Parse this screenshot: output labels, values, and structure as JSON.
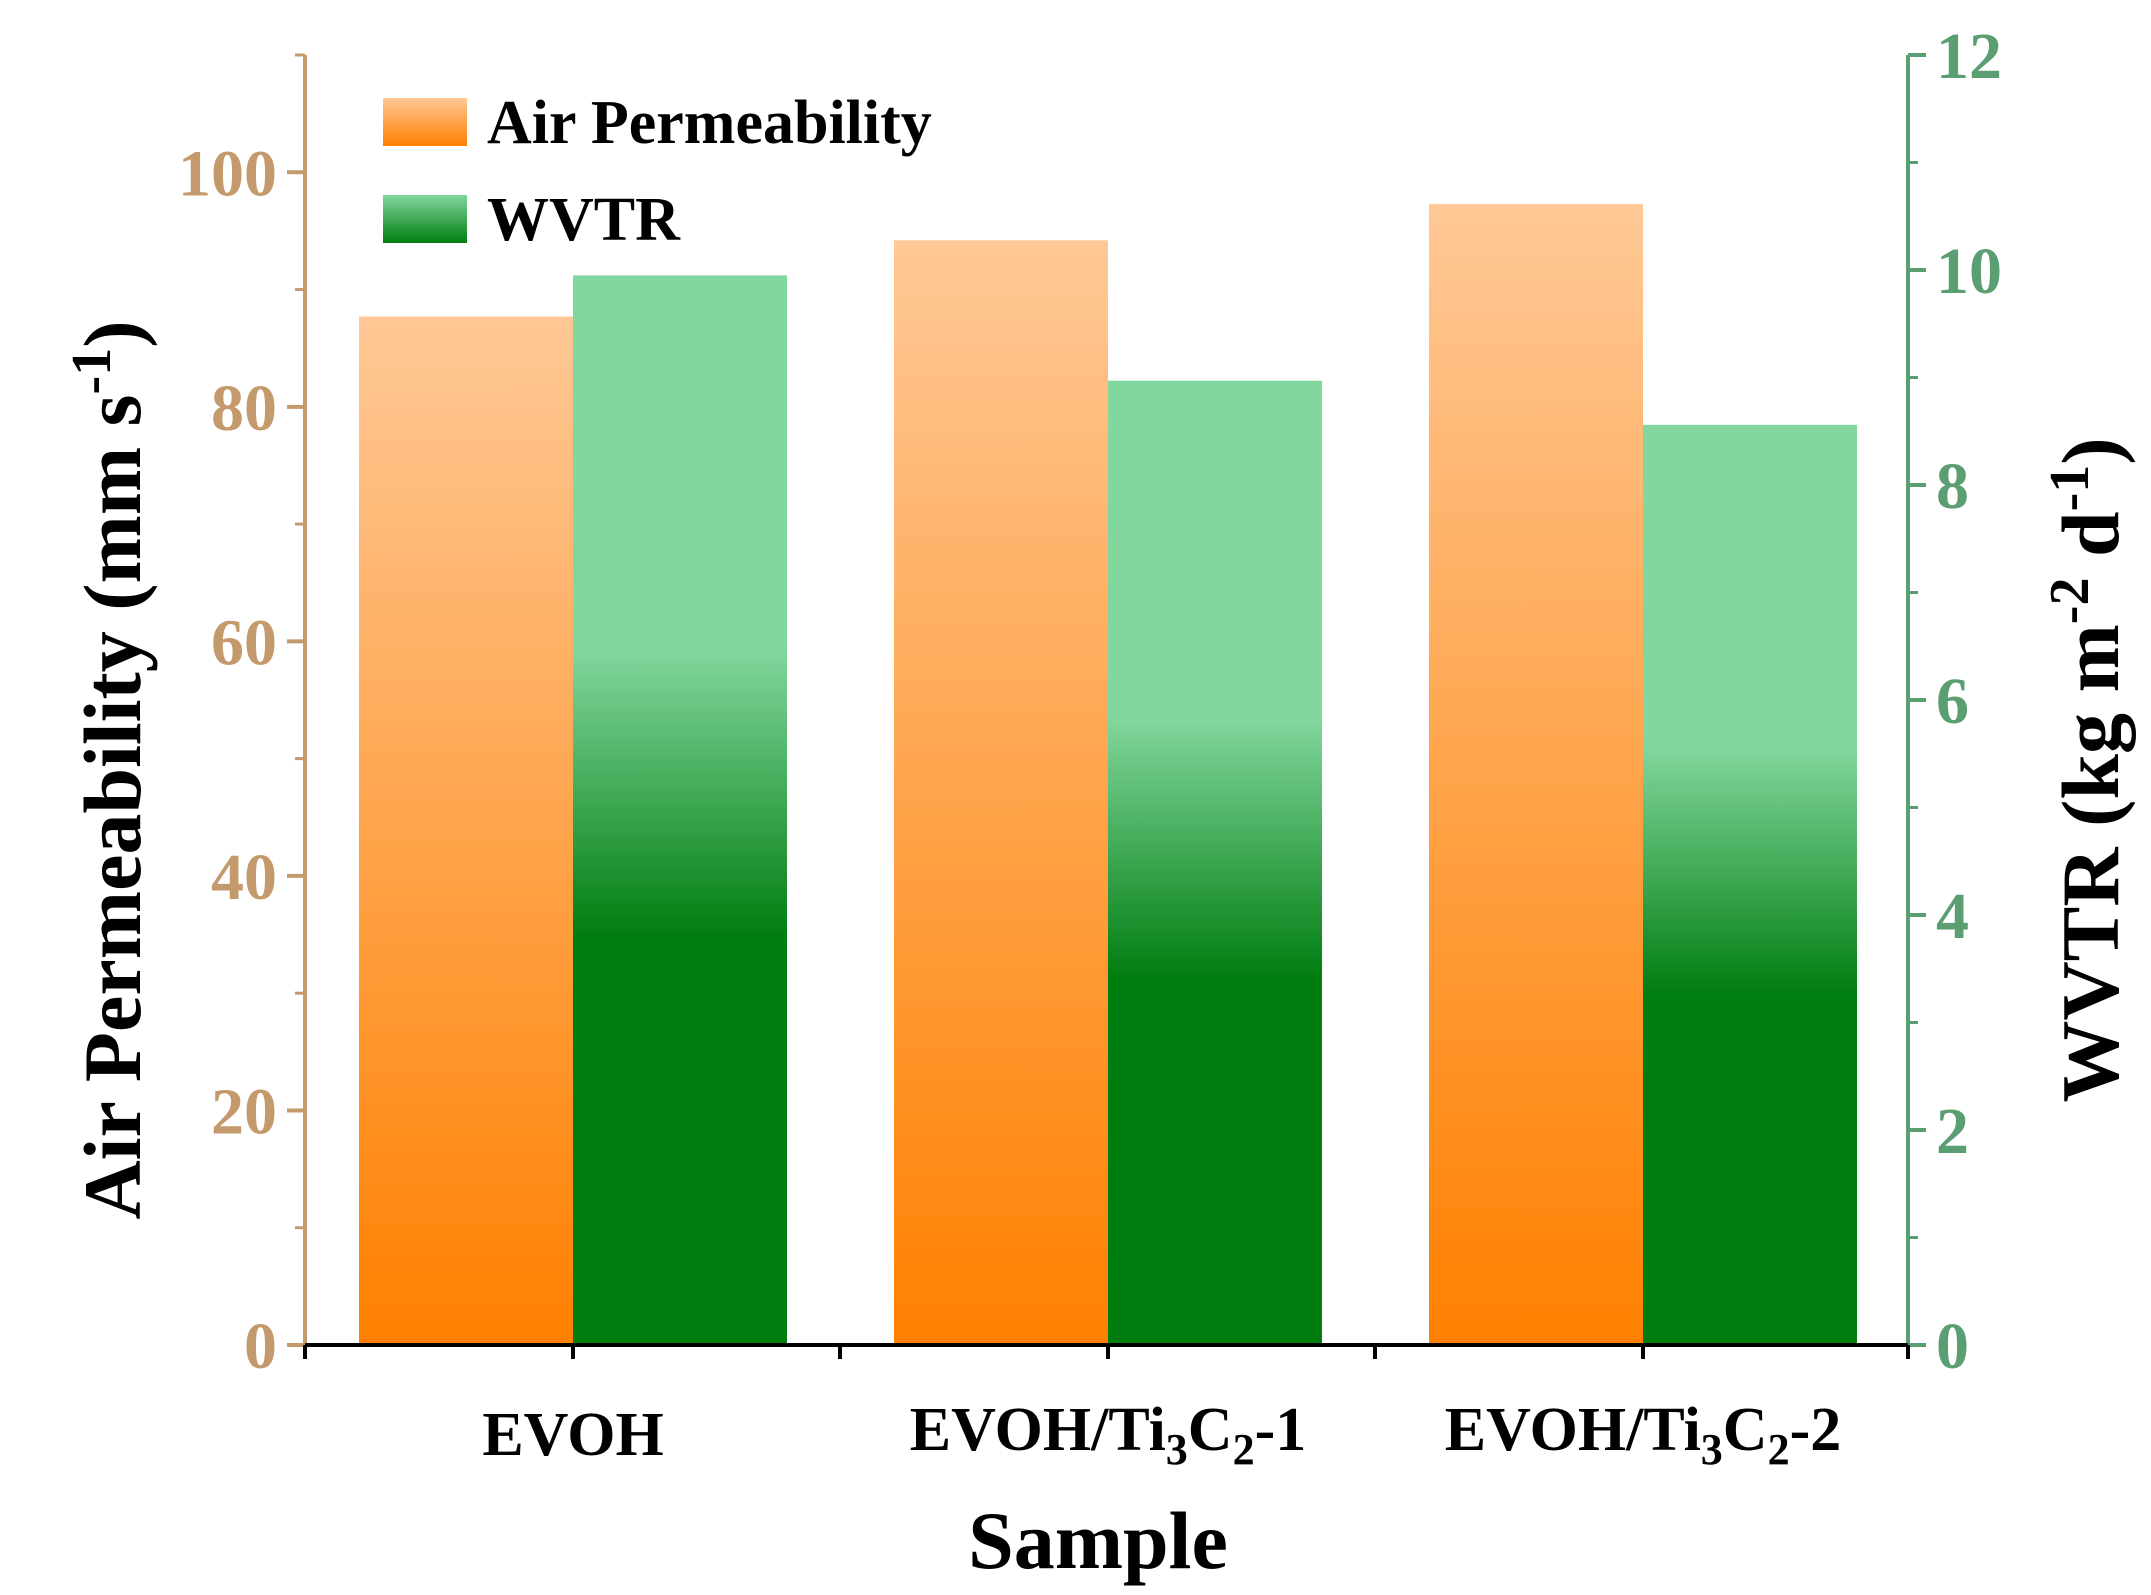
{
  "colors": {
    "left_axis": "#c49a6c",
    "right_axis": "#5a9e72",
    "air_top": "#ffc896",
    "air_bottom": "#ff8000",
    "wvtr_top": "#82d79e",
    "wvtr_bottom": "#007d0f",
    "text": "#000000"
  },
  "chart_data": {
    "type": "bar",
    "categories": [
      "EVOH",
      "EVOH/Ti3C2-1",
      "EVOH/Ti3C2-2"
    ],
    "category_labels": [
      {
        "prefix": "EVOH",
        "sub1": "",
        "mid": "",
        "sub2": "",
        "suffix": ""
      },
      {
        "prefix": "EVOH/Ti",
        "sub1": "3",
        "mid": "C",
        "sub2": "2",
        "suffix": "-1"
      },
      {
        "prefix": "EVOH/Ti",
        "sub1": "3",
        "mid": "C",
        "sub2": "2",
        "suffix": "-2"
      }
    ],
    "series": [
      {
        "name": "Air Permeability",
        "axis": "left",
        "values": [
          87.7,
          94.2,
          97.3
        ]
      },
      {
        "name": "WVTR",
        "axis": "right",
        "values": [
          9.95,
          8.97,
          8.56
        ]
      }
    ],
    "xlabel": "Sample",
    "ylabel_left": {
      "main": "Air Permeability (mm s",
      "sup": "-1",
      "end": ")"
    },
    "ylabel_right": {
      "main": "WVTR (kg m",
      "sup1": "-2",
      "mid": " d",
      "sup2": "-1",
      "end": ")"
    },
    "ylim_left": [
      0,
      110
    ],
    "ylim_right": [
      0,
      12
    ],
    "left_ticks": [
      0,
      20,
      40,
      60,
      80,
      100
    ],
    "right_ticks": [
      0,
      2,
      4,
      6,
      8,
      10,
      12
    ],
    "legend_position": "top-left"
  }
}
